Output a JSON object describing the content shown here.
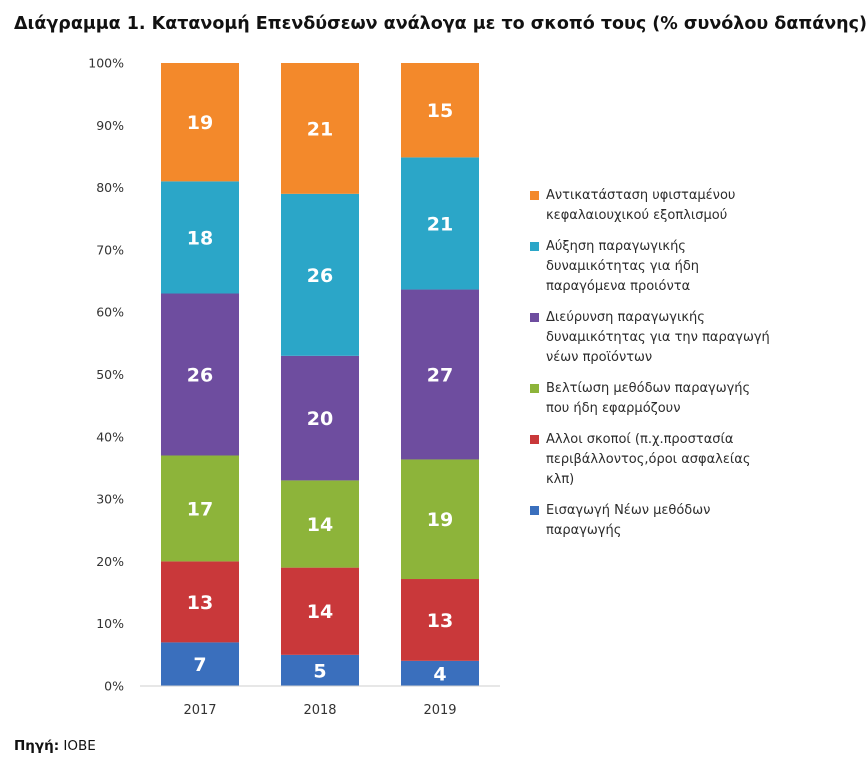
{
  "title": "Διάγραμμα 1. Κατανομή Επενδύσεων ανάλογα με το σκοπό τους (% συνόλου δαπάνης)",
  "source": {
    "label": "Πηγή:",
    "value": "ΙΟΒΕ"
  },
  "chart_data": {
    "type": "bar",
    "stacked": true,
    "percent_stacked": true,
    "categories": [
      "2017",
      "2018",
      "2019"
    ],
    "ylim": [
      0,
      100
    ],
    "y_ticks": [
      "0%",
      "10%",
      "20%",
      "30%",
      "40%",
      "50%",
      "60%",
      "70%",
      "80%",
      "90%",
      "100%"
    ],
    "grid": false,
    "legend_position": "right",
    "series": [
      {
        "name": "Εισαγωγή Νέων μεθόδων παραγωγής",
        "color": "#3a6fbd",
        "values": [
          7,
          5,
          4
        ]
      },
      {
        "name": "Αλλοι σκοποί (π.χ.προστασία περιβάλλοντος,όροι ασφαλείας κλπ)",
        "color": "#c9383a",
        "values": [
          13,
          14,
          13
        ]
      },
      {
        "name": "Βελτίωση μεθόδων παραγωγής που ήδη εφαρμόζουν",
        "color": "#8db43a",
        "values": [
          17,
          14,
          19
        ]
      },
      {
        "name": "Διεύρυνση παραγωγικής δυναμικότητας για την παραγωγή νέων προϊόντων",
        "color": "#6e4d9f",
        "values": [
          26,
          20,
          27
        ]
      },
      {
        "name": "Αύξηση παραγωγικής δυναμικότητας για ήδη παραγόμενα προιόντα",
        "color": "#2ba6c8",
        "values": [
          18,
          26,
          21
        ]
      },
      {
        "name": "Αντικατάσταση υφισταμένου κεφαλαιουχικού εξοπλισμού",
        "color": "#f3892b",
        "values": [
          19,
          21,
          15
        ]
      }
    ]
  }
}
